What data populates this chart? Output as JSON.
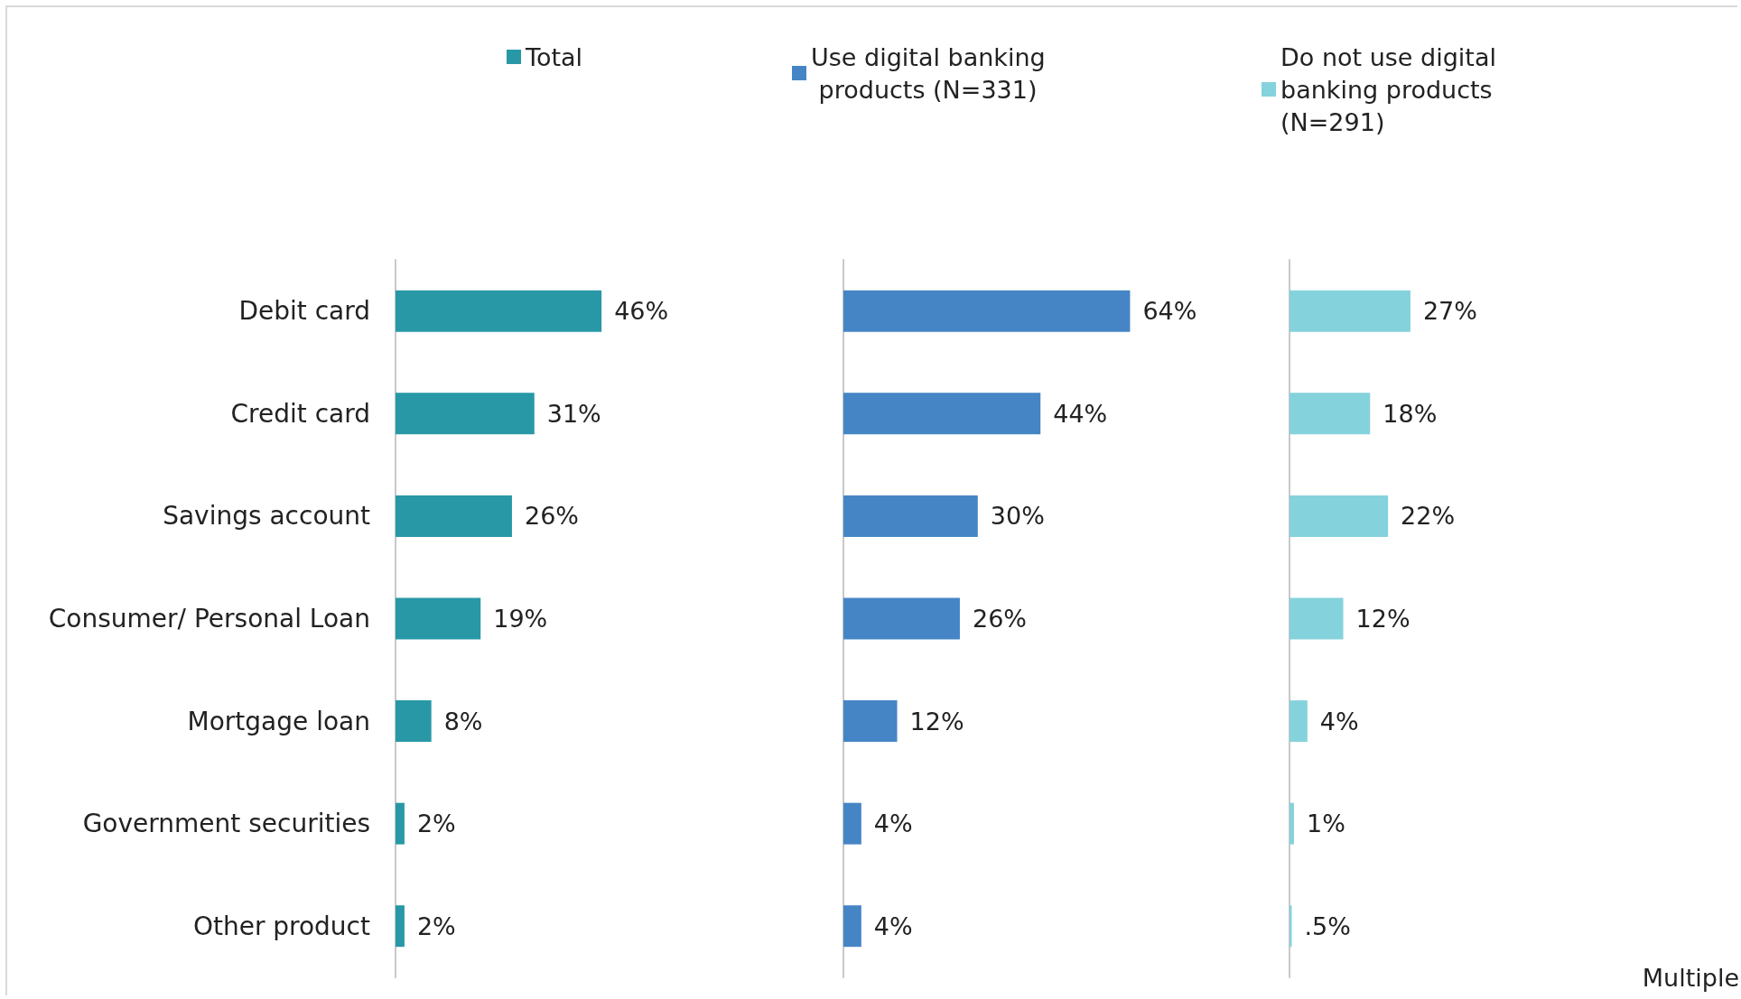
{
  "chart_data": [
    {
      "type": "bar",
      "orientation": "horizontal",
      "categories": [
        "Debit card",
        "Credit card",
        "Savings account",
        "Consumer/ Personal Loan",
        "Mortgage loan",
        "Government securities",
        "Other product"
      ],
      "series": [
        {
          "name": "Total",
          "color": "#2898a6",
          "values": [
            46,
            31,
            26,
            19,
            8,
            2,
            2
          ],
          "value_labels": [
            "46%",
            "31%",
            "26%",
            "19%",
            "8%",
            "2%",
            "2%"
          ]
        }
      ],
      "tick_labels": "y",
      "legend": "top"
    },
    {
      "type": "bar",
      "orientation": "horizontal",
      "series": [
        {
          "name": "Use digital banking products (N=331)",
          "color": "#4585c6",
          "values": [
            64,
            44,
            30,
            26,
            12,
            4,
            4
          ],
          "value_labels": [
            "64%",
            "44%",
            "30%",
            "26%",
            "12%",
            "4%",
            "4%"
          ]
        }
      ],
      "tick_labels": false,
      "legend": "top"
    },
    {
      "type": "bar",
      "orientation": "horizontal",
      "series": [
        {
          "name": "Do not use digital banking products (N=291)",
          "color": "#84d2dc",
          "values": [
            27,
            18,
            22,
            12,
            4,
            1,
            0.5
          ],
          "value_labels": [
            "27%",
            "18%",
            "22%",
            "12%",
            "4%",
            "1%",
            ".5%"
          ]
        }
      ],
      "tick_labels": false,
      "legend": "top",
      "annotations": [
        "Multiple"
      ]
    }
  ]
}
